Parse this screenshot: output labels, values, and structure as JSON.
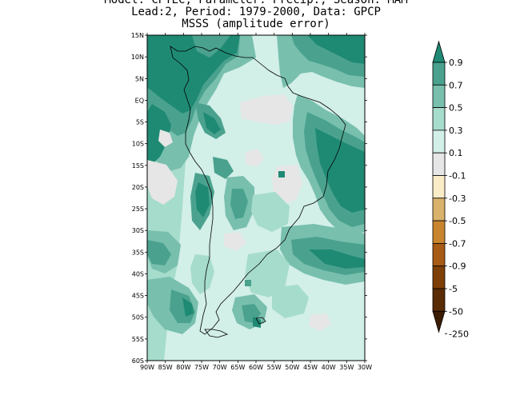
{
  "title": {
    "line1": "Model: CPTEC, Parameter: Precip., Season: MAM",
    "line2": "Lead:2, Period: 1979-2000, Data: GPCP",
    "line3": "MSSS (amplitude error)"
  },
  "map": {
    "region": "South America",
    "lat_range": [
      "60S",
      "15N"
    ],
    "lon_range": [
      "90W",
      "30W"
    ],
    "lat_labels": [
      "15N",
      "10N",
      "5N",
      "EQ",
      "5S",
      "10S",
      "15S",
      "20S",
      "25S",
      "30S",
      "35S",
      "40S",
      "45S",
      "50S",
      "55S",
      "60S"
    ],
    "lon_labels": [
      "90W",
      "85W",
      "80W",
      "75W",
      "70W",
      "65W",
      "60W",
      "55W",
      "50W",
      "45W",
      "40W",
      "35W",
      "30W"
    ]
  },
  "colorbar": {
    "labels": [
      "0.9",
      "0.7",
      "0.5",
      "0.3",
      "0.1",
      "-0.1",
      "-0.3",
      "-0.5",
      "-0.7",
      "-0.9",
      "-5",
      "-50",
      "-250"
    ],
    "colors": [
      "#1f8a74",
      "#4aa28e",
      "#78bfae",
      "#a6dccb",
      "#d2efe8",
      "#e6e6e6",
      "#faecc6",
      "#d9b26b",
      "#c9852e",
      "#a75b14",
      "#7d3f07",
      "#5a2c05",
      "#3b1c04"
    ]
  }
}
